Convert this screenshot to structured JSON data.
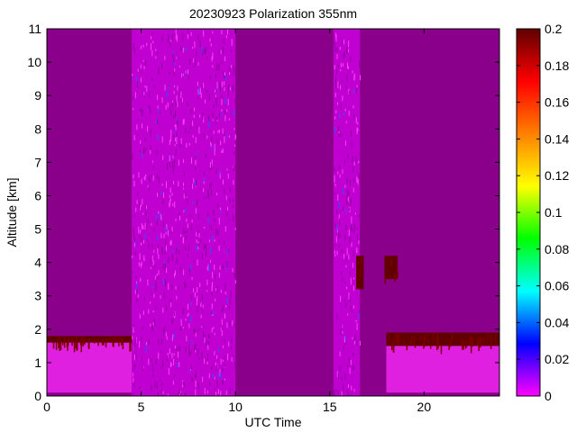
{
  "chart_data": {
    "type": "heatmap",
    "title": "20230923 Polarization 355nm",
    "xlabel": "UTC Time",
    "ylabel": "Altitude [km]",
    "xlim": [
      0,
      24
    ],
    "ylim": [
      0,
      11
    ],
    "x_ticks": [
      0,
      5,
      10,
      15,
      20
    ],
    "y_ticks": [
      0,
      1,
      2,
      3,
      4,
      5,
      6,
      7,
      8,
      9,
      10,
      11
    ],
    "colorbar": {
      "range": [
        0,
        0.2
      ],
      "ticks": [
        "0",
        "0.02",
        "0.04",
        "0.06",
        "0.08",
        "0.1",
        "0.12",
        "0.14",
        "0.16",
        "0.18",
        "0.2"
      ],
      "colormap": [
        "#ff00ff",
        "#0000ff",
        "#00ffff",
        "#00ff00",
        "#ffff00",
        "#ff8000",
        "#ff0000",
        "#600000"
      ]
    },
    "background_value": 0.0,
    "background_color": "#8b008b",
    "regions": [
      {
        "kind": "boundary_layer",
        "x_range": [
          0,
          4.5
        ],
        "y_range": [
          0.1,
          1.8
        ],
        "value": 0.01,
        "color": "#e020e0"
      },
      {
        "kind": "noisy_column",
        "x_range": [
          4.5,
          10
        ],
        "y_range": [
          0,
          11
        ],
        "value": 0.01,
        "color": "#c000d0"
      },
      {
        "kind": "noisy_column",
        "x_range": [
          15.2,
          16.6
        ],
        "y_range": [
          0,
          11
        ],
        "value": 0.01,
        "color": "#c000d0"
      },
      {
        "kind": "boundary_layer",
        "x_range": [
          18,
          24
        ],
        "y_range": [
          0.1,
          1.9
        ],
        "value": 0.01,
        "color": "#e020e0"
      },
      {
        "kind": "cloud_top",
        "x_range": [
          0,
          4.5
        ],
        "y_range": [
          1.6,
          1.8
        ],
        "value": 0.2,
        "color": "#600000"
      },
      {
        "kind": "cloud_top",
        "x_range": [
          18,
          24
        ],
        "y_range": [
          1.5,
          1.9
        ],
        "value": 0.2,
        "color": "#600000"
      },
      {
        "kind": "aerosol_layer",
        "x_range": [
          16.4,
          16.8
        ],
        "y_range": [
          3.2,
          4.2
        ],
        "value": 0.2,
        "color": "#600000"
      },
      {
        "kind": "aerosol_layer",
        "x_range": [
          17.9,
          18.6
        ],
        "y_range": [
          3.5,
          4.2
        ],
        "value": 0.2,
        "color": "#600000"
      }
    ]
  }
}
